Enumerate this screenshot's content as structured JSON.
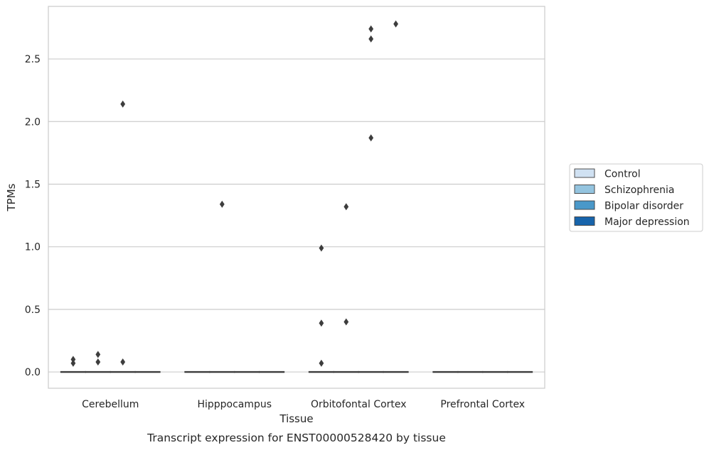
{
  "caption": "Transcript expression for ENST00000528420 by tissue",
  "chart_data": {
    "type": "box",
    "title": "",
    "xlabel": "Tissue",
    "ylabel": "TPMs",
    "ylim": [
      -0.13,
      2.92
    ],
    "yticks": [
      0.0,
      0.5,
      1.0,
      1.5,
      2.0,
      2.5
    ],
    "ytick_labels": [
      "0.0",
      "0.5",
      "1.0",
      "1.5",
      "2.0",
      "2.5"
    ],
    "grid": "horizontal",
    "legend_position": "right",
    "categories": [
      "Cerebellum",
      "Hipppocampus",
      "Orbitofontal Cortex",
      "Prefrontal Cortex"
    ],
    "series": [
      {
        "name": "Control",
        "color": "#d0e1f2",
        "median": [
          0,
          0,
          0,
          0
        ],
        "outliers": [
          [
            0.1,
            0.07
          ],
          [],
          [
            0.99,
            0.39,
            0.07
          ],
          []
        ]
      },
      {
        "name": "Schizophrenia",
        "color": "#94c4df",
        "median": [
          0,
          0,
          0,
          0
        ],
        "outliers": [
          [
            0.14,
            0.08
          ],
          [
            1.34
          ],
          [
            1.32,
            0.4
          ],
          []
        ]
      },
      {
        "name": "Bipolar disorder",
        "color": "#4a98c9",
        "median": [
          0,
          0,
          0,
          0
        ],
        "outliers": [
          [
            2.14,
            0.08
          ],
          [],
          [
            2.74,
            2.66,
            1.87
          ],
          []
        ]
      },
      {
        "name": "Major depression",
        "color": "#1764ab",
        "median": [
          0,
          0,
          0,
          0
        ],
        "outliers": [
          [],
          [],
          [
            2.78
          ],
          []
        ]
      }
    ]
  }
}
